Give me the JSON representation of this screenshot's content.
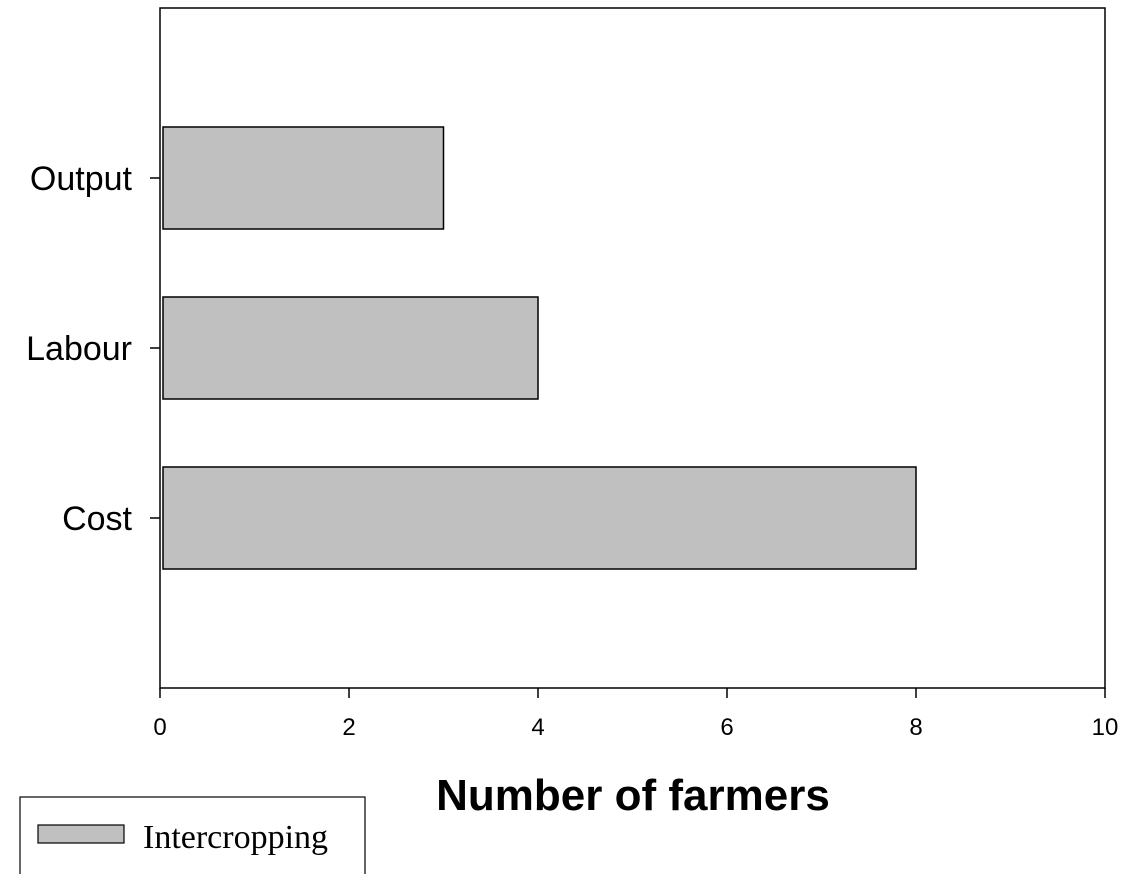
{
  "chart_data": {
    "type": "bar",
    "orientation": "horizontal",
    "categories": [
      "Output",
      "Labour",
      "Cost"
    ],
    "series": [
      {
        "name": "Intercropping",
        "values": [
          3,
          4,
          8
        ],
        "color": "#c0c0c0"
      }
    ],
    "title": "",
    "xlabel": "Number of farmers",
    "ylabel": "",
    "xlim": [
      0,
      10
    ],
    "xticks": [
      0,
      2,
      4,
      6,
      8,
      10
    ],
    "grid": false,
    "legend_position": "bottom-left"
  }
}
